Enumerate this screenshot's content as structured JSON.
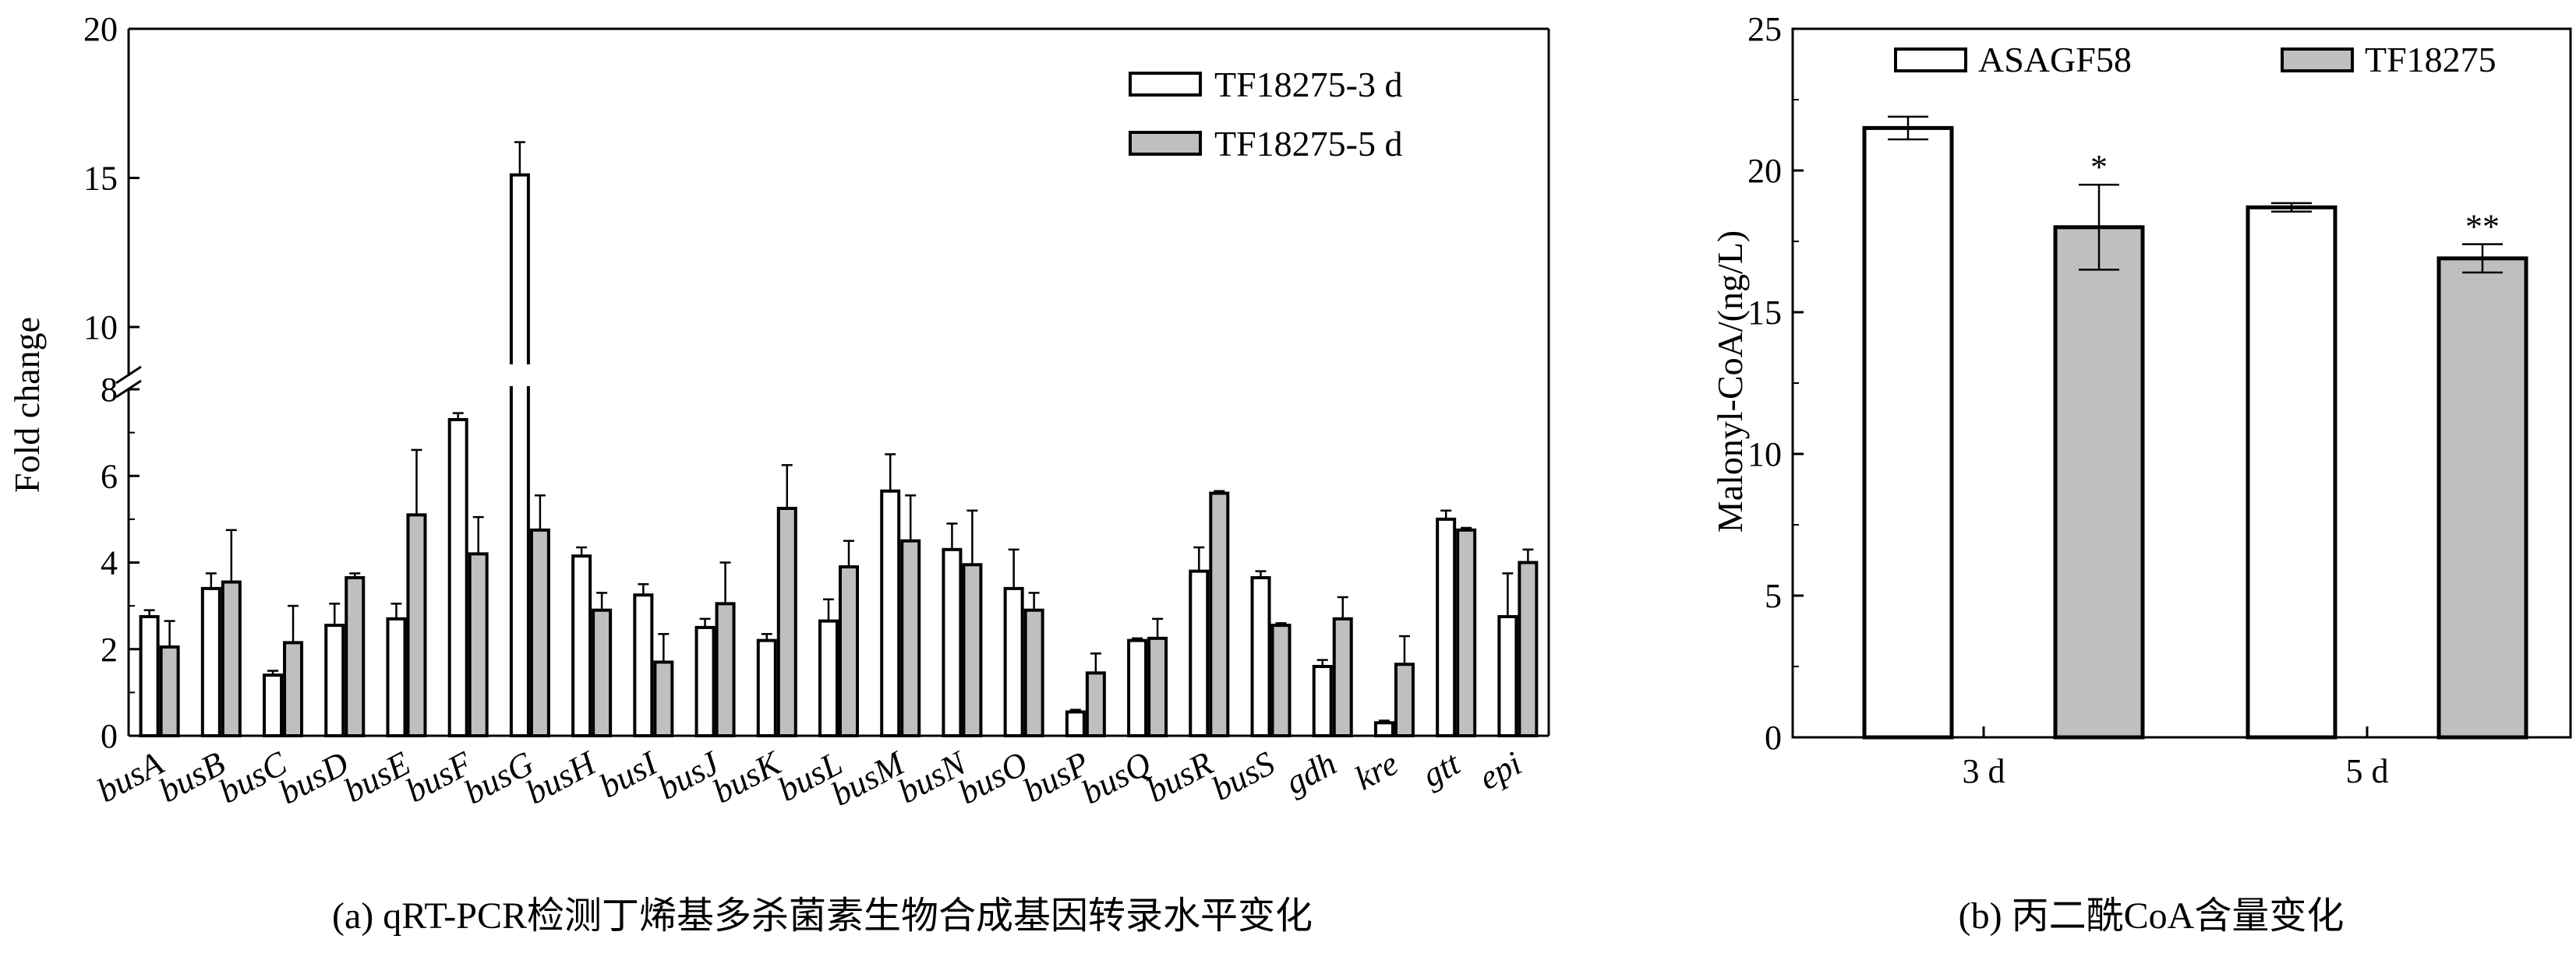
{
  "chart_data": [
    {
      "type": "bar",
      "caption": "(a) qRT-PCR检测丁烯基多杀菌素生物合成基因转录水平变化",
      "ylabel": "Fold change",
      "xlabel": "",
      "y_axis_break": [
        8,
        10
      ],
      "ylim": [
        0,
        20
      ],
      "y_ticks": [
        "0",
        "2",
        "4",
        "6",
        "8",
        "10",
        "15",
        "20"
      ],
      "legend_position": "top-right",
      "categories": [
        "busA",
        "busB",
        "busC",
        "busD",
        "busE",
        "busF",
        "busG",
        "busH",
        "busI",
        "busJ",
        "busK",
        "busL",
        "busM",
        "busN",
        "busO",
        "busP",
        "busQ",
        "busR",
        "busS",
        "gdh",
        "kre",
        "gtt",
        "epi"
      ],
      "series": [
        {
          "name": "TF18275-3 d",
          "fill": "#ffffff",
          "values": [
            2.75,
            3.4,
            1.4,
            2.55,
            2.7,
            7.3,
            15.1,
            4.15,
            3.25,
            2.5,
            2.2,
            2.65,
            5.65,
            4.3,
            3.4,
            0.55,
            2.2,
            3.8,
            3.65,
            1.6,
            0.3,
            5.0,
            2.75
          ],
          "errors": [
            0.15,
            0.35,
            0.1,
            0.5,
            0.35,
            0.15,
            1.1,
            0.2,
            0.25,
            0.2,
            0.15,
            0.5,
            0.85,
            0.6,
            0.9,
            0.05,
            0.05,
            0.55,
            0.15,
            0.15,
            0.05,
            0.2,
            1.0
          ]
        },
        {
          "name": "TF18275-5 d",
          "fill": "#bfbfbf",
          "values": [
            2.05,
            3.55,
            2.15,
            3.65,
            5.1,
            4.2,
            4.75,
            2.9,
            1.7,
            3.05,
            5.25,
            3.9,
            4.5,
            3.95,
            2.9,
            1.45,
            2.25,
            5.6,
            2.55,
            2.7,
            1.65,
            4.75,
            4.0
          ],
          "errors": [
            0.6,
            1.2,
            0.85,
            0.1,
            1.5,
            0.85,
            0.8,
            0.4,
            0.65,
            0.95,
            1.0,
            0.6,
            1.05,
            1.25,
            0.4,
            0.45,
            0.45,
            0.05,
            0.05,
            0.5,
            0.65,
            0.05,
            0.3
          ]
        }
      ]
    },
    {
      "type": "bar",
      "caption": "(b) 丙二酰CoA含量变化",
      "ylabel": "Malonyl-CoA/(ng/L)",
      "xlabel": "",
      "ylim": [
        0,
        25
      ],
      "y_ticks": [
        "0",
        "5",
        "10",
        "15",
        "20",
        "25"
      ],
      "legend_position": "top",
      "categories": [
        "3 d",
        "5 d"
      ],
      "series": [
        {
          "name": "ASAGF58",
          "fill": "#ffffff",
          "values": [
            21.5,
            18.7
          ],
          "errors": [
            0.4,
            0.15
          ]
        },
        {
          "name": "TF18275",
          "fill": "#bfbfbf",
          "values": [
            18.0,
            16.9
          ],
          "errors": [
            1.5,
            0.5
          ]
        }
      ],
      "annotations": [
        "*",
        "**"
      ]
    }
  ]
}
